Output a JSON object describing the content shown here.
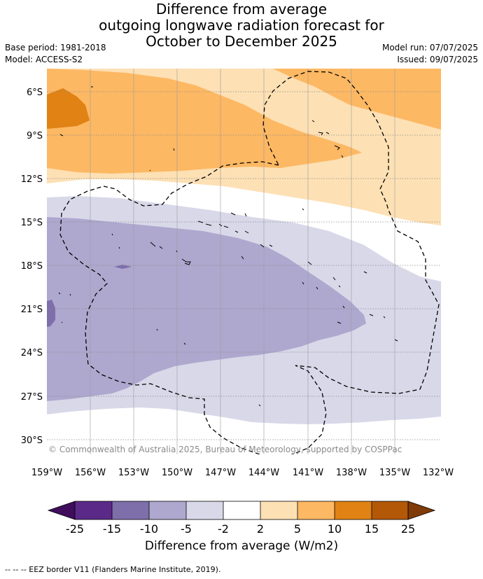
{
  "header": {
    "title_lines": [
      "Difference from average",
      "outgoing longwave radiation forecast for",
      "October to December 2025"
    ],
    "base_period": "Base period: 1981-2018",
    "model": "Model: ACCESS-S2",
    "model_run": "Model run: 07/07/2025",
    "issued": "Issued: 09/07/2025"
  },
  "map": {
    "lat_labels": [
      "6°S",
      "9°S",
      "12°S",
      "15°S",
      "18°S",
      "21°S",
      "24°S",
      "27°S",
      "30°S"
    ],
    "lon_labels": [
      "159°W",
      "156°W",
      "153°W",
      "150°W",
      "147°W",
      "144°W",
      "141°W",
      "138°W",
      "135°W",
      "132°W"
    ],
    "credit": "© Commonwealth of Australia 2025, Bureau of Meteorology, supported by COSPPac",
    "colors": {
      "neg25": "#3f0d5c",
      "neg20": "#5b2a89",
      "neg15": "#7e6fab",
      "neg10": "#aea8cf",
      "neg5": "#d8d8e9",
      "zero": "#ffffff",
      "pos5": "#fde0b4",
      "pos10": "#fdb863",
      "pos15": "#e08214",
      "pos20": "#b35806",
      "pos25": "#7f3b08"
    }
  },
  "colorbar": {
    "tick_labels": [
      "-25",
      "-15",
      "-10",
      "-5",
      "-2",
      "2",
      "5",
      "10",
      "15",
      "25"
    ],
    "label": "Difference from average (W/m2)"
  },
  "footnote": "--  --  -- EEZ border V11 (Flanders Marine Institute, 2019)."
}
